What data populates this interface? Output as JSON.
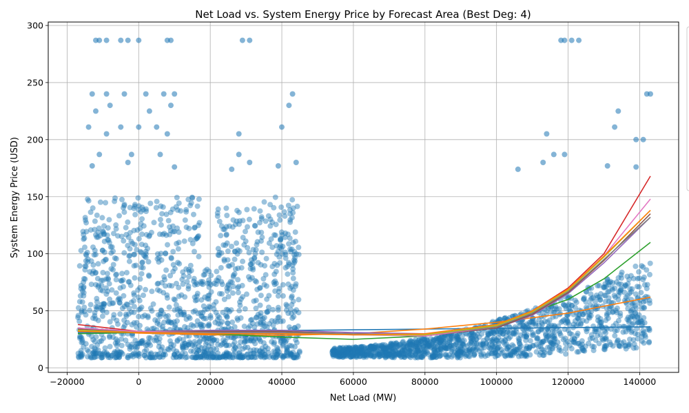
{
  "chart_data": {
    "type": "scatter",
    "title": "Net Load vs. System Energy Price by Forecast Area (Best Deg: 4)",
    "xlabel": "Net Load (MW)",
    "ylabel": "System Energy Price (USD)",
    "xlim": [
      -20000,
      150000
    ],
    "ylim": [
      0,
      300
    ],
    "xticks": [
      -20000,
      0,
      20000,
      40000,
      60000,
      80000,
      100000,
      120000,
      140000
    ],
    "xtick_labels": [
      "−20000",
      "0",
      "20000",
      "40000",
      "60000",
      "80000",
      "100000",
      "120000",
      "140000"
    ],
    "yticks": [
      0,
      50,
      100,
      150,
      200,
      250,
      300
    ],
    "ytick_labels": [
      "0",
      "50",
      "100",
      "150",
      "200",
      "250",
      "300"
    ],
    "grid": true,
    "legend_placement": "right, partially cut off",
    "scatter_color": "#1f77b4",
    "scatter_clusters": [
      {
        "x_range": [
          -17000,
          45000
        ],
        "y_center": 30,
        "y_spread": [
          9,
          150
        ]
      },
      {
        "x_range": [
          54000,
          143000
        ],
        "y_center": 45,
        "y_spread": [
          9,
          130
        ]
      }
    ],
    "scatter_outliers": [
      [
        -12000,
        287
      ],
      [
        -11000,
        287
      ],
      [
        -9000,
        287
      ],
      [
        -5000,
        287
      ],
      [
        -3000,
        287
      ],
      [
        0,
        287
      ],
      [
        8000,
        287
      ],
      [
        9000,
        287
      ],
      [
        29000,
        287
      ],
      [
        31000,
        287
      ],
      [
        118000,
        287
      ],
      [
        119000,
        287
      ],
      [
        121000,
        287
      ],
      [
        123000,
        287
      ],
      [
        -13000,
        240
      ],
      [
        -9000,
        240
      ],
      [
        -4000,
        240
      ],
      [
        2000,
        240
      ],
      [
        7000,
        240
      ],
      [
        10000,
        240
      ],
      [
        43000,
        240
      ],
      [
        142000,
        240
      ],
      [
        143000,
        240
      ],
      [
        -12000,
        225
      ],
      [
        -8000,
        230
      ],
      [
        3000,
        225
      ],
      [
        9000,
        230
      ],
      [
        42000,
        230
      ],
      [
        134000,
        225
      ],
      [
        -14000,
        211
      ],
      [
        -9000,
        205
      ],
      [
        -5000,
        211
      ],
      [
        0,
        211
      ],
      [
        5000,
        211
      ],
      [
        8000,
        205
      ],
      [
        28000,
        205
      ],
      [
        40000,
        211
      ],
      [
        114000,
        205
      ],
      [
        133000,
        211
      ],
      [
        139000,
        200
      ],
      [
        141000,
        200
      ],
      [
        -11000,
        187
      ],
      [
        -2000,
        187
      ],
      [
        6000,
        187
      ],
      [
        28000,
        187
      ],
      [
        116000,
        187
      ],
      [
        119000,
        187
      ],
      [
        -13000,
        177
      ],
      [
        -3000,
        180
      ],
      [
        10000,
        176
      ],
      [
        26000,
        174
      ],
      [
        31000,
        180
      ],
      [
        39000,
        177
      ],
      [
        44000,
        180
      ],
      [
        106000,
        174
      ],
      [
        113000,
        180
      ],
      [
        131000,
        177
      ],
      [
        139000,
        176
      ]
    ],
    "series": [
      {
        "color": "#1f77b4",
        "x": [
          -17000,
          143000
        ],
        "y": [
          31,
          36
        ]
      },
      {
        "color": "#ff7f0e",
        "x": [
          -17000,
          0,
          20000,
          40000,
          60000,
          80000,
          100000,
          120000,
          143000
        ],
        "y": [
          33,
          30.5,
          29,
          28.5,
          30,
          34,
          40,
          48,
          62
        ]
      },
      {
        "color": "#2ca02c",
        "x": [
          -17000,
          0,
          20000,
          40000,
          60000,
          80000,
          100000,
          120000,
          130000,
          143000
        ],
        "y": [
          30,
          31,
          30,
          27,
          25,
          28,
          38,
          60,
          78,
          110
        ]
      },
      {
        "color": "#d62728",
        "x": [
          -17000,
          0,
          20000,
          40000,
          60000,
          80000,
          100000,
          110000,
          120000,
          130000,
          143000
        ],
        "y": [
          38,
          32,
          31,
          31,
          30,
          28,
          36,
          50,
          70,
          100,
          168
        ]
      },
      {
        "color": "#9467bd",
        "x": [
          -17000,
          0,
          20000,
          40000,
          60000,
          80000,
          100000,
          110000,
          120000,
          130000,
          143000
        ],
        "y": [
          33,
          32,
          33,
          33,
          31,
          30,
          35,
          46,
          65,
          92,
          132
        ]
      },
      {
        "color": "#8c564b",
        "x": [
          -17000,
          0,
          20000,
          40000,
          60000,
          80000,
          100000,
          110000,
          120000,
          130000,
          143000
        ],
        "y": [
          34,
          32,
          32,
          32,
          30,
          28,
          35,
          47,
          66,
          94,
          135
        ]
      },
      {
        "color": "#e377c2",
        "x": [
          -17000,
          0,
          20000,
          40000,
          60000,
          80000,
          100000,
          110000,
          120000,
          130000,
          143000
        ],
        "y": [
          35,
          32,
          31,
          31,
          29,
          28,
          36,
          49,
          69,
          98,
          148
        ]
      },
      {
        "color": "#7f7f7f",
        "x": [
          -17000,
          0,
          20000,
          40000,
          60000,
          80000,
          100000,
          110000,
          120000,
          130000,
          143000
        ],
        "y": [
          32,
          31,
          31,
          31,
          30,
          29,
          36,
          48,
          67,
          95,
          132
        ]
      },
      {
        "color": "#bcbd22",
        "x": [
          -17000,
          0,
          20000,
          40000,
          60000,
          80000,
          100000,
          110000,
          120000,
          130000,
          143000
        ],
        "y": [
          33,
          31,
          30,
          30,
          29,
          29,
          37,
          49,
          68,
          97,
          138
        ]
      },
      {
        "color": "#ff7f0e",
        "x": [
          -17000,
          0,
          20000,
          40000,
          60000,
          80000,
          100000,
          110000,
          120000,
          130000,
          143000
        ],
        "y": [
          32,
          31,
          30,
          30,
          29,
          30,
          38,
          50,
          69,
          98,
          138
        ]
      }
    ]
  }
}
